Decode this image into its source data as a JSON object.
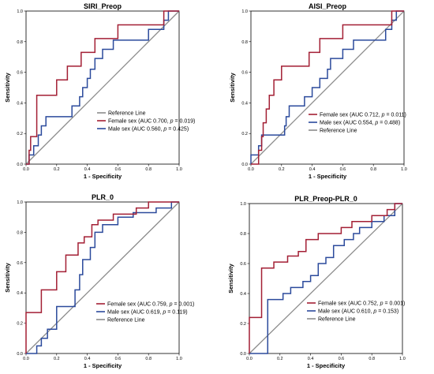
{
  "colors": {
    "female": "#a31f34",
    "male": "#2b4a9c",
    "reference": "#8c8c8c"
  },
  "chart_data": [
    {
      "type": "line",
      "title": "SIRI_Preop",
      "xlabel": "1 - Specificity",
      "ylabel": "Sensitivity",
      "xlim": [
        0,
        1
      ],
      "ylim": [
        0,
        1
      ],
      "xticks": [
        "0.0",
        "0.2",
        "0.4",
        "0.6",
        "0.8",
        "1.0"
      ],
      "yticks": [
        "0.0",
        "0.2",
        "0.4",
        "0.6",
        "0.8",
        "1.0"
      ],
      "legend_order": [
        "ref",
        "female",
        "male"
      ],
      "series": [
        {
          "key": "female",
          "legend_parts": [
            "Female sex (AUC 0.700, ",
            "p",
            " = 0.019)"
          ],
          "points": [
            [
              0,
              0
            ],
            [
              0.02,
              0
            ],
            [
              0.02,
              0.09
            ],
            [
              0.03,
              0.09
            ],
            [
              0.03,
              0.18
            ],
            [
              0.07,
              0.18
            ],
            [
              0.07,
              0.45
            ],
            [
              0.2,
              0.45
            ],
            [
              0.2,
              0.55
            ],
            [
              0.27,
              0.55
            ],
            [
              0.27,
              0.64
            ],
            [
              0.36,
              0.64
            ],
            [
              0.36,
              0.73
            ],
            [
              0.45,
              0.73
            ],
            [
              0.45,
              0.82
            ],
            [
              0.6,
              0.82
            ],
            [
              0.6,
              0.91
            ],
            [
              0.9,
              0.91
            ],
            [
              0.9,
              1
            ],
            [
              1,
              1
            ]
          ]
        },
        {
          "key": "male",
          "legend_parts": [
            "Male sex (AUC 0.560, ",
            "p",
            " = 0.425)"
          ],
          "points": [
            [
              0,
              0
            ],
            [
              0.02,
              0
            ],
            [
              0.02,
              0.06
            ],
            [
              0.05,
              0.06
            ],
            [
              0.05,
              0.12
            ],
            [
              0.08,
              0.12
            ],
            [
              0.08,
              0.19
            ],
            [
              0.1,
              0.19
            ],
            [
              0.1,
              0.25
            ],
            [
              0.13,
              0.25
            ],
            [
              0.13,
              0.31
            ],
            [
              0.3,
              0.31
            ],
            [
              0.3,
              0.38
            ],
            [
              0.35,
              0.38
            ],
            [
              0.35,
              0.44
            ],
            [
              0.37,
              0.44
            ],
            [
              0.37,
              0.5
            ],
            [
              0.4,
              0.5
            ],
            [
              0.4,
              0.56
            ],
            [
              0.42,
              0.56
            ],
            [
              0.42,
              0.62
            ],
            [
              0.45,
              0.62
            ],
            [
              0.45,
              0.69
            ],
            [
              0.5,
              0.69
            ],
            [
              0.5,
              0.75
            ],
            [
              0.57,
              0.75
            ],
            [
              0.57,
              0.81
            ],
            [
              0.8,
              0.81
            ],
            [
              0.8,
              0.88
            ],
            [
              0.9,
              0.88
            ],
            [
              0.9,
              0.94
            ],
            [
              0.93,
              0.94
            ],
            [
              0.93,
              1
            ],
            [
              1,
              1
            ]
          ]
        }
      ],
      "reference_label": "Reference Line"
    },
    {
      "type": "line",
      "title": "AISI_Preop",
      "xlabel": "1 - Specificity",
      "ylabel": "Sensitivity",
      "xlim": [
        0,
        1
      ],
      "ylim": [
        0,
        1
      ],
      "xticks": [
        "0.0",
        "0.2",
        "0.4",
        "0.6",
        "0.8",
        "1.0"
      ],
      "yticks": [
        "0.0",
        "0.2",
        "0.4",
        "0.6",
        "0.8",
        "1.0"
      ],
      "legend_order": [
        "female",
        "male",
        "ref"
      ],
      "series": [
        {
          "key": "female",
          "legend_parts": [
            "Female sex (AUC 0.712, ",
            "p",
            " = 0.011)"
          ],
          "points": [
            [
              0,
              0
            ],
            [
              0.05,
              0
            ],
            [
              0.05,
              0.09
            ],
            [
              0.07,
              0.09
            ],
            [
              0.07,
              0.18
            ],
            [
              0.08,
              0.18
            ],
            [
              0.08,
              0.27
            ],
            [
              0.1,
              0.27
            ],
            [
              0.1,
              0.36
            ],
            [
              0.12,
              0.36
            ],
            [
              0.12,
              0.45
            ],
            [
              0.15,
              0.45
            ],
            [
              0.15,
              0.55
            ],
            [
              0.2,
              0.55
            ],
            [
              0.2,
              0.64
            ],
            [
              0.38,
              0.64
            ],
            [
              0.38,
              0.73
            ],
            [
              0.45,
              0.73
            ],
            [
              0.45,
              0.82
            ],
            [
              0.6,
              0.82
            ],
            [
              0.6,
              0.91
            ],
            [
              0.92,
              0.91
            ],
            [
              0.92,
              1
            ],
            [
              1,
              1
            ]
          ]
        },
        {
          "key": "male",
          "legend_parts": [
            "Male sex (AUC 0.554, ",
            "p",
            " = 0.488)"
          ],
          "points": [
            [
              0,
              0
            ],
            [
              0,
              0.06
            ],
            [
              0.05,
              0.06
            ],
            [
              0.05,
              0.12
            ],
            [
              0.07,
              0.12
            ],
            [
              0.07,
              0.19
            ],
            [
              0.22,
              0.19
            ],
            [
              0.22,
              0.25
            ],
            [
              0.23,
              0.25
            ],
            [
              0.23,
              0.31
            ],
            [
              0.25,
              0.31
            ],
            [
              0.25,
              0.38
            ],
            [
              0.35,
              0.38
            ],
            [
              0.35,
              0.44
            ],
            [
              0.4,
              0.44
            ],
            [
              0.4,
              0.5
            ],
            [
              0.45,
              0.5
            ],
            [
              0.45,
              0.56
            ],
            [
              0.5,
              0.56
            ],
            [
              0.5,
              0.62
            ],
            [
              0.52,
              0.62
            ],
            [
              0.52,
              0.69
            ],
            [
              0.6,
              0.69
            ],
            [
              0.6,
              0.75
            ],
            [
              0.67,
              0.75
            ],
            [
              0.67,
              0.81
            ],
            [
              0.88,
              0.81
            ],
            [
              0.88,
              0.88
            ],
            [
              0.92,
              0.88
            ],
            [
              0.92,
              0.94
            ],
            [
              0.95,
              0.94
            ],
            [
              0.95,
              1
            ],
            [
              1,
              1
            ]
          ]
        }
      ],
      "reference_label": "Reference Line"
    },
    {
      "type": "line",
      "title": "PLR_0",
      "xlabel": "1 - Specificity",
      "ylabel": "Sensitivity",
      "xlim": [
        0,
        1
      ],
      "ylim": [
        0,
        1
      ],
      "xticks": [
        "0.0",
        "0.2",
        "0.4",
        "0.6",
        "0.8",
        "1.0"
      ],
      "yticks": [
        "0.0",
        "0.2",
        "0.4",
        "0.6",
        "0.8",
        "1.0"
      ],
      "legend_order": [
        "female",
        "male",
        "ref"
      ],
      "series": [
        {
          "key": "female",
          "legend_parts": [
            "Female sex (AUC 0.759, ",
            "p",
            " = 0.001)"
          ],
          "points": [
            [
              0,
              0
            ],
            [
              0,
              0.27
            ],
            [
              0.1,
              0.27
            ],
            [
              0.1,
              0.42
            ],
            [
              0.2,
              0.42
            ],
            [
              0.2,
              0.54
            ],
            [
              0.26,
              0.54
            ],
            [
              0.26,
              0.65
            ],
            [
              0.34,
              0.65
            ],
            [
              0.34,
              0.73
            ],
            [
              0.38,
              0.73
            ],
            [
              0.38,
              0.77
            ],
            [
              0.43,
              0.77
            ],
            [
              0.43,
              0.85
            ],
            [
              0.47,
              0.85
            ],
            [
              0.47,
              0.88
            ],
            [
              0.57,
              0.88
            ],
            [
              0.57,
              0.92
            ],
            [
              0.72,
              0.92
            ],
            [
              0.72,
              0.96
            ],
            [
              0.8,
              0.96
            ],
            [
              0.8,
              1
            ],
            [
              1,
              1
            ]
          ]
        },
        {
          "key": "male",
          "legend_parts": [
            "Male sex (AUC 0.619, ",
            "p",
            " = 0.119)"
          ],
          "points": [
            [
              0,
              0
            ],
            [
              0.07,
              0
            ],
            [
              0.07,
              0.05
            ],
            [
              0.1,
              0.05
            ],
            [
              0.1,
              0.1
            ],
            [
              0.14,
              0.1
            ],
            [
              0.14,
              0.16
            ],
            [
              0.2,
              0.16
            ],
            [
              0.2,
              0.31
            ],
            [
              0.32,
              0.31
            ],
            [
              0.32,
              0.42
            ],
            [
              0.35,
              0.42
            ],
            [
              0.35,
              0.52
            ],
            [
              0.37,
              0.52
            ],
            [
              0.37,
              0.62
            ],
            [
              0.42,
              0.62
            ],
            [
              0.42,
              0.7
            ],
            [
              0.45,
              0.7
            ],
            [
              0.45,
              0.8
            ],
            [
              0.5,
              0.8
            ],
            [
              0.5,
              0.85
            ],
            [
              0.6,
              0.85
            ],
            [
              0.6,
              0.9
            ],
            [
              0.7,
              0.9
            ],
            [
              0.7,
              0.93
            ],
            [
              0.85,
              0.93
            ],
            [
              0.85,
              0.96
            ],
            [
              0.95,
              0.96
            ],
            [
              0.95,
              1
            ],
            [
              1,
              1
            ]
          ]
        }
      ],
      "reference_label": "Reference Line"
    },
    {
      "type": "line",
      "title": "PLR_Preop-PLR_0",
      "xlabel": "1 - Specificity",
      "ylabel": "Sensitivity",
      "xlim": [
        0,
        1
      ],
      "ylim": [
        0,
        1
      ],
      "xticks": [
        "0.0",
        "0.2",
        "0.4",
        "0.6",
        "0.8",
        "1.0"
      ],
      "yticks": [
        "0.0",
        "0.2",
        "0.4",
        "0.6",
        "0.8",
        "1.0"
      ],
      "legend_order": [
        "female",
        "male",
        "ref"
      ],
      "series": [
        {
          "key": "female",
          "legend_parts": [
            "Female sex (AUC 0.752, ",
            "p",
            " = 0.001)"
          ],
          "points": [
            [
              0,
              0
            ],
            [
              0,
              0.24
            ],
            [
              0.08,
              0.24
            ],
            [
              0.08,
              0.57
            ],
            [
              0.16,
              0.57
            ],
            [
              0.16,
              0.61
            ],
            [
              0.25,
              0.61
            ],
            [
              0.25,
              0.65
            ],
            [
              0.32,
              0.65
            ],
            [
              0.32,
              0.68
            ],
            [
              0.37,
              0.68
            ],
            [
              0.37,
              0.76
            ],
            [
              0.45,
              0.76
            ],
            [
              0.45,
              0.8
            ],
            [
              0.6,
              0.8
            ],
            [
              0.6,
              0.84
            ],
            [
              0.67,
              0.84
            ],
            [
              0.67,
              0.88
            ],
            [
              0.8,
              0.88
            ],
            [
              0.8,
              0.92
            ],
            [
              0.9,
              0.92
            ],
            [
              0.9,
              0.96
            ],
            [
              0.95,
              0.96
            ],
            [
              0.95,
              1
            ],
            [
              1,
              1
            ]
          ]
        },
        {
          "key": "male",
          "legend_parts": [
            "Male sex (AUC 0.610, ",
            "p",
            " = 0.153)"
          ],
          "points": [
            [
              0,
              0
            ],
            [
              0.12,
              0
            ],
            [
              0.12,
              0.36
            ],
            [
              0.22,
              0.36
            ],
            [
              0.22,
              0.4
            ],
            [
              0.27,
              0.4
            ],
            [
              0.27,
              0.44
            ],
            [
              0.35,
              0.44
            ],
            [
              0.35,
              0.48
            ],
            [
              0.4,
              0.48
            ],
            [
              0.4,
              0.52
            ],
            [
              0.45,
              0.52
            ],
            [
              0.45,
              0.6
            ],
            [
              0.5,
              0.6
            ],
            [
              0.5,
              0.64
            ],
            [
              0.55,
              0.64
            ],
            [
              0.55,
              0.72
            ],
            [
              0.62,
              0.72
            ],
            [
              0.62,
              0.76
            ],
            [
              0.68,
              0.76
            ],
            [
              0.68,
              0.8
            ],
            [
              0.72,
              0.8
            ],
            [
              0.72,
              0.84
            ],
            [
              0.8,
              0.84
            ],
            [
              0.8,
              0.88
            ],
            [
              0.88,
              0.88
            ],
            [
              0.88,
              0.92
            ],
            [
              0.95,
              0.92
            ],
            [
              0.95,
              1
            ],
            [
              1,
              1
            ]
          ]
        }
      ],
      "reference_label": "Reference Line"
    }
  ]
}
